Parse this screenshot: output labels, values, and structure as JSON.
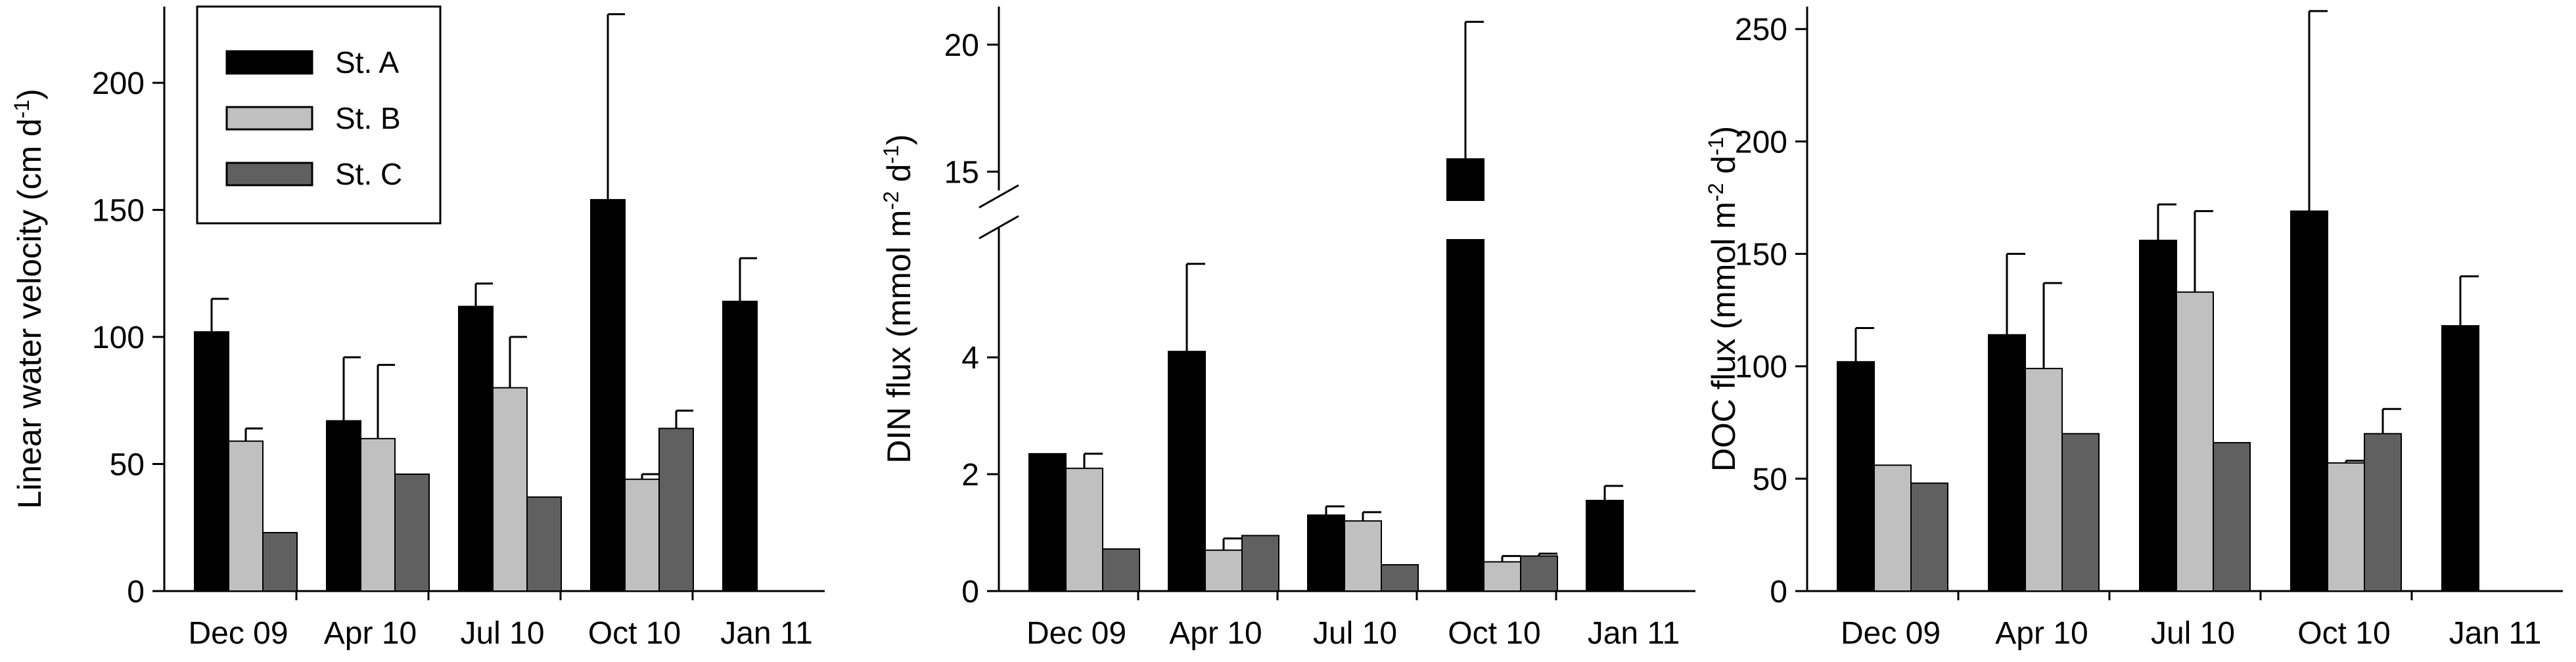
{
  "legend": [
    {
      "label": "St. A",
      "color": "#000000"
    },
    {
      "label": "St. B",
      "color": "#c0c0c0"
    },
    {
      "label": "St. C",
      "color": "#606060"
    }
  ],
  "chart_data": [
    {
      "type": "bar",
      "categories": [
        "Dec 09",
        "Apr 10",
        "Jul 10",
        "Oct 10",
        "Jan 11"
      ],
      "ylabel": "Linear water velocity (cm d-1)",
      "ylabel_main": "Linear water velocity (cm d",
      "ylabel_sup": "-1",
      "ylabel_close": ")",
      "ylim": [
        0,
        230
      ],
      "yticks": [
        0,
        50,
        100,
        150,
        200
      ],
      "series": [
        {
          "name": "St. A",
          "values": [
            102,
            67,
            112,
            154,
            114
          ],
          "errors": [
            13,
            25,
            9,
            73,
            17
          ]
        },
        {
          "name": "St. B",
          "values": [
            59,
            60,
            80,
            44,
            null
          ],
          "errors": [
            5,
            29,
            20,
            2,
            null
          ]
        },
        {
          "name": "St. C",
          "values": [
            23,
            46,
            37,
            64,
            null
          ],
          "errors": [
            null,
            null,
            null,
            7,
            null
          ]
        }
      ]
    },
    {
      "type": "bar",
      "categories": [
        "Dec 09",
        "Apr 10",
        "Jul 10",
        "Oct 10",
        "Jan 11"
      ],
      "ylabel": "DIN flux (mmol m-2 d-1)",
      "ylabel_main": "DIN flux (mmol m",
      "ylabel_sup1": "-2",
      "ylabel_mid": " d",
      "ylabel_sup2": "-1",
      "ylabel_close": ")",
      "y_axis_break": true,
      "ylim_lower": [
        0,
        5.9
      ],
      "ylim_upper": [
        14.0,
        21.5
      ],
      "yticks": [
        0,
        2,
        4,
        15,
        20
      ],
      "series": [
        {
          "name": "St. A",
          "values": [
            2.35,
            4.1,
            1.3,
            15.5,
            1.55
          ],
          "errors": [
            null,
            1.5,
            0.15,
            5.4,
            0.25
          ]
        },
        {
          "name": "St. B",
          "values": [
            2.1,
            0.7,
            1.2,
            0.5,
            null
          ],
          "errors": [
            0.25,
            0.2,
            0.15,
            0.1,
            null
          ]
        },
        {
          "name": "St. C",
          "values": [
            0.72,
            0.95,
            0.45,
            0.6,
            null
          ],
          "errors": [
            null,
            null,
            null,
            0.04,
            null
          ]
        }
      ]
    },
    {
      "type": "bar",
      "categories": [
        "Dec 09",
        "Apr 10",
        "Jul 10",
        "Oct 10",
        "Jan 11"
      ],
      "ylabel": "DOC flux (mmol m-2 d-1)",
      "ylabel_main": "DOC flux (mmol m",
      "ylabel_sup1": "-2",
      "ylabel_mid": " d",
      "ylabel_sup2": "-1",
      "ylabel_close": ")",
      "ylim": [
        0,
        260
      ],
      "yticks": [
        0,
        50,
        100,
        150,
        200,
        250
      ],
      "series": [
        {
          "name": "St. A",
          "values": [
            102,
            114,
            156,
            169,
            118
          ],
          "errors": [
            15,
            36,
            16,
            89,
            22
          ]
        },
        {
          "name": "St. B",
          "values": [
            56,
            99,
            133,
            57,
            null
          ],
          "errors": [
            null,
            38,
            36,
            1,
            null
          ]
        },
        {
          "name": "St. C",
          "values": [
            48,
            70,
            66,
            70,
            null
          ],
          "errors": [
            null,
            null,
            null,
            11,
            null
          ]
        }
      ]
    }
  ]
}
